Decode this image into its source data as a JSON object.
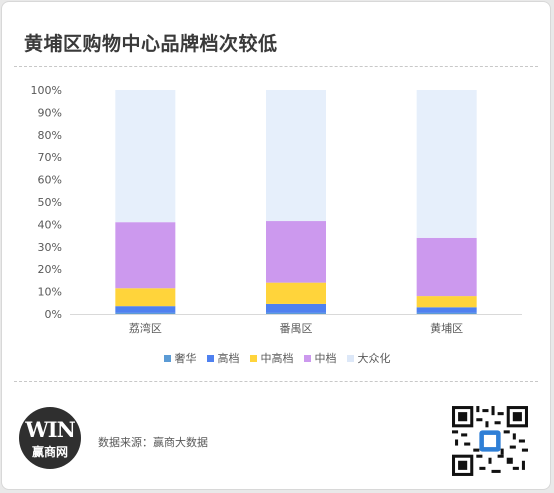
{
  "title": "黄埔区购物中心品牌档次较低",
  "source_text": "数据来源：赢商大数据",
  "logo": {
    "mark": "WIN",
    "name": "赢商网"
  },
  "qr_icon": "qr-code-icon",
  "chart_data": {
    "type": "bar",
    "stacked": true,
    "percent": true,
    "categories": [
      "荔湾区",
      "番禺区",
      "黄埔区"
    ],
    "y_ticks": [
      "0%",
      "10%",
      "20%",
      "30%",
      "40%",
      "50%",
      "60%",
      "70%",
      "80%",
      "90%",
      "100%"
    ],
    "ylim": [
      0,
      100
    ],
    "grid": false,
    "legend_position": "bottom",
    "series": [
      {
        "name": "奢华",
        "color": "#5b9bd5",
        "values": [
          0.5,
          0.5,
          0.5
        ]
      },
      {
        "name": "高档",
        "color": "#4f81f0",
        "values": [
          3,
          4,
          2.5
        ]
      },
      {
        "name": "中高档",
        "color": "#ffd43b",
        "values": [
          8,
          9.5,
          5
        ]
      },
      {
        "name": "中档",
        "color": "#cc99ee",
        "values": [
          29.5,
          27.5,
          26
        ]
      },
      {
        "name": "大众化",
        "color": "#e6effb",
        "values": [
          59,
          58.5,
          66
        ]
      }
    ]
  }
}
